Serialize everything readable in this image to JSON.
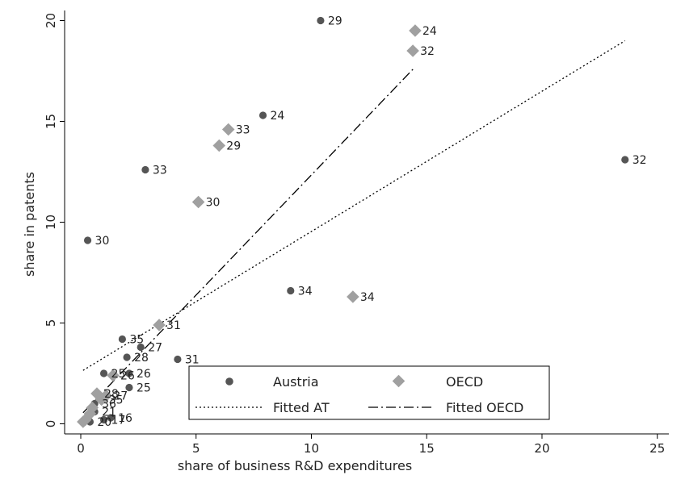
{
  "chart_data": {
    "type": "scatter",
    "xlabel": "share of business R&D expenditures",
    "ylabel": "share in patents",
    "xlim": [
      -0.7,
      25.5
    ],
    "ylim": [
      -0.5,
      20.5
    ],
    "x_ticks": [
      0,
      5,
      10,
      15,
      20,
      25
    ],
    "y_ticks": [
      0,
      5,
      10,
      15,
      20
    ],
    "grid": false,
    "legend_placement": "bottom-center",
    "legend": {
      "austria": "Austria",
      "oecd": "OECD",
      "fitted_at": "Fitted AT",
      "fitted_oecd": "Fitted OECD"
    },
    "colors": {
      "austria": "#555555",
      "oecd": "#a0a0a0",
      "line": "#000000"
    },
    "series": [
      {
        "name": "Austria",
        "marker": "circle",
        "points": [
          {
            "x": 10.4,
            "y": 20.0,
            "label": "29"
          },
          {
            "x": 7.9,
            "y": 15.3,
            "label": "24"
          },
          {
            "x": 2.8,
            "y": 12.6,
            "label": "33"
          },
          {
            "x": 0.3,
            "y": 9.1,
            "label": "30"
          },
          {
            "x": 23.6,
            "y": 13.1,
            "label": "32"
          },
          {
            "x": 9.1,
            "y": 6.6,
            "label": "34"
          },
          {
            "x": 4.2,
            "y": 3.2,
            "label": "31"
          },
          {
            "x": 1.8,
            "y": 4.2,
            "label": "35"
          },
          {
            "x": 2.6,
            "y": 3.8,
            "label": "27"
          },
          {
            "x": 2.0,
            "y": 3.3,
            "label": "28"
          },
          {
            "x": 2.1,
            "y": 2.5,
            "label": "26"
          },
          {
            "x": 1.0,
            "y": 2.5,
            "label": "25"
          },
          {
            "x": 2.1,
            "y": 1.8,
            "label": "25"
          },
          {
            "x": 0.6,
            "y": 1.0,
            "label": "36"
          },
          {
            "x": 0.6,
            "y": 0.6,
            "label": "21"
          },
          {
            "x": 1.3,
            "y": 0.3,
            "label": "16"
          },
          {
            "x": 1.0,
            "y": 0.2,
            "label": "17"
          },
          {
            "x": 0.4,
            "y": 0.1,
            "label": "20"
          }
        ]
      },
      {
        "name": "OECD",
        "marker": "diamond",
        "points": [
          {
            "x": 14.5,
            "y": 19.5,
            "label": "24"
          },
          {
            "x": 14.4,
            "y": 18.5,
            "label": "32"
          },
          {
            "x": 6.4,
            "y": 14.6,
            "label": "33"
          },
          {
            "x": 6.0,
            "y": 13.8,
            "label": "29"
          },
          {
            "x": 5.1,
            "y": 11.0,
            "label": "30"
          },
          {
            "x": 11.8,
            "y": 6.3,
            "label": "34"
          },
          {
            "x": 3.4,
            "y": 4.9,
            "label": "31"
          },
          {
            "x": 1.4,
            "y": 2.4,
            "label": "26"
          },
          {
            "x": 1.1,
            "y": 1.4,
            "label": "27"
          },
          {
            "x": 0.7,
            "y": 1.5,
            "label": "28"
          },
          {
            "x": 0.9,
            "y": 1.2,
            "label": "35"
          },
          {
            "x": 0.5,
            "y": 0.8,
            "label": ""
          },
          {
            "x": 0.4,
            "y": 0.5,
            "label": ""
          },
          {
            "x": 0.2,
            "y": 0.2,
            "label": ""
          },
          {
            "x": 0.1,
            "y": 0.1,
            "label": ""
          }
        ]
      }
    ],
    "fits": [
      {
        "name": "Fitted AT",
        "style": "dotted",
        "x": [
          0.1,
          23.6
        ],
        "y": [
          2.65,
          19.0
        ]
      },
      {
        "name": "Fitted OECD",
        "style": "dashdot",
        "x": [
          0.1,
          14.5
        ],
        "y": [
          0.55,
          17.7
        ]
      }
    ]
  }
}
